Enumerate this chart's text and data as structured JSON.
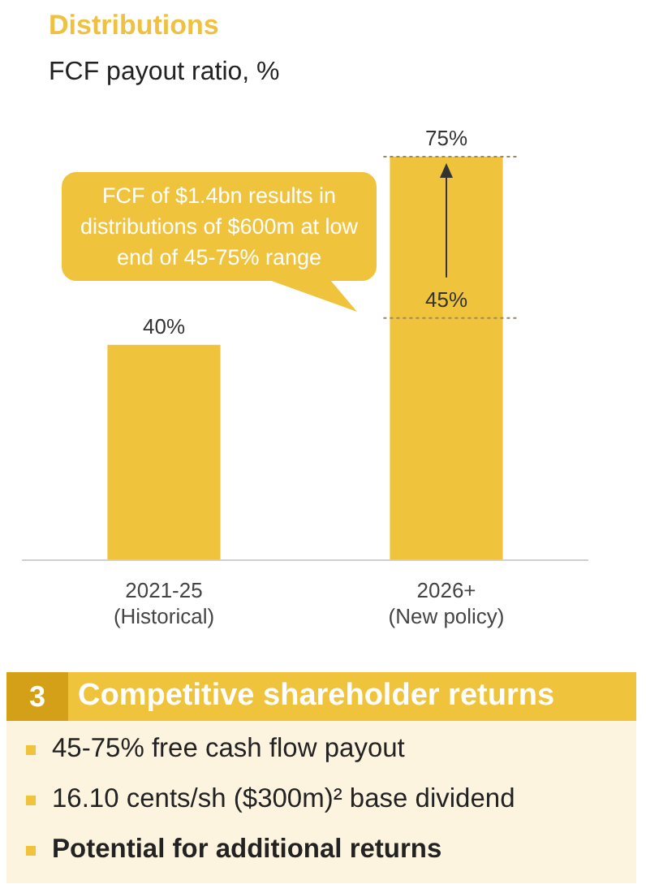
{
  "chart_data": {
    "type": "bar",
    "title": "Distributions",
    "subtitle": "FCF payout ratio, %",
    "categories": [
      "2021-25 (Historical)",
      "2026+ (New policy)"
    ],
    "values": [
      40,
      75
    ],
    "value_labels": [
      "40%",
      "75%"
    ],
    "color": "#f0c33c",
    "ref_lines": [
      {
        "axis": "y",
        "value": 45,
        "label": "45%",
        "color": "#9a8a60",
        "line_style": "dotted"
      },
      {
        "axis": "y",
        "value": 75,
        "color": "#9a8a60",
        "line_style": "dotted"
      }
    ],
    "grid": false,
    "legend": false,
    "tick_labels": "x",
    "annotations": [
      "FCF of $1.4bn results in distributions of $600m at low end of 45-75% range",
      "3",
      "Competitive shareholder returns",
      "45-75% free cash flow payout",
      "16.10 cents/sh ($300m)² base dividend",
      "Potential for additional returns"
    ]
  }
}
